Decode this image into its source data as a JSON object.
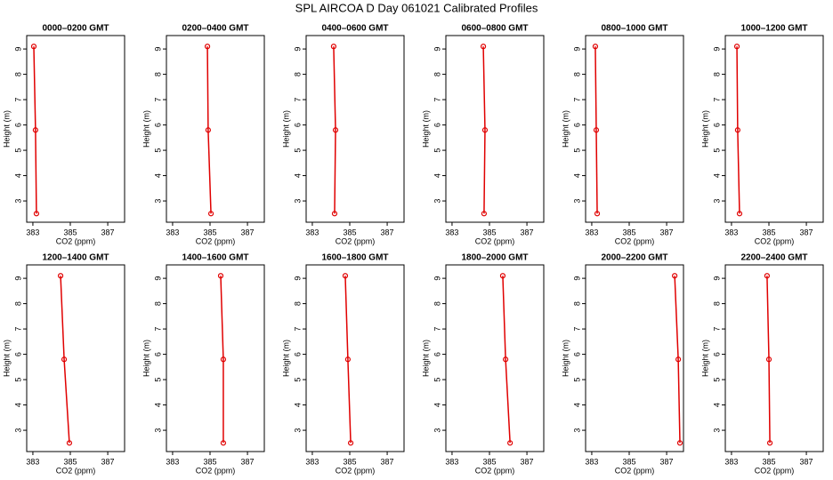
{
  "title": "SPL AIRCOA D  Day 061021  Calibrated Profiles",
  "chart_data": [
    {
      "type": "line",
      "title": "0000–0200 GMT",
      "xlabel": "CO2 (ppm)",
      "ylabel": "Height (m)",
      "color": "#e00000",
      "x": [
        383.05,
        383.14,
        383.19
      ],
      "values": [
        9.1,
        5.8,
        2.5
      ],
      "xlim": [
        382.67,
        387.9
      ],
      "ylim": [
        2.16,
        9.53
      ],
      "xticks": [
        383,
        385,
        387
      ],
      "yticks": [
        3,
        4,
        5,
        6,
        7,
        8,
        9
      ]
    },
    {
      "type": "line",
      "title": "0200–0400 GMT",
      "xlabel": "CO2 (ppm)",
      "ylabel": "Height (m)",
      "color": "#e00000",
      "x": [
        384.86,
        384.9,
        385.05
      ],
      "values": [
        9.1,
        5.8,
        2.5
      ],
      "xlim": [
        382.67,
        387.9
      ],
      "ylim": [
        2.16,
        9.53
      ],
      "xticks": [
        383,
        385,
        387
      ],
      "yticks": [
        3,
        4,
        5,
        6,
        7,
        8,
        9
      ]
    },
    {
      "type": "line",
      "title": "0400–0600 GMT",
      "xlabel": "CO2 (ppm)",
      "ylabel": "Height (m)",
      "color": "#e00000",
      "x": [
        384.14,
        384.24,
        384.19
      ],
      "values": [
        9.1,
        5.8,
        2.5
      ],
      "xlim": [
        382.67,
        387.9
      ],
      "ylim": [
        2.16,
        9.53
      ],
      "xticks": [
        383,
        385,
        387
      ],
      "yticks": [
        3,
        4,
        5,
        6,
        7,
        8,
        9
      ]
    },
    {
      "type": "line",
      "title": "0600–0800 GMT",
      "xlabel": "CO2 (ppm)",
      "ylabel": "Height (m)",
      "color": "#e00000",
      "x": [
        384.67,
        384.76,
        384.71
      ],
      "values": [
        9.1,
        5.8,
        2.5
      ],
      "xlim": [
        382.67,
        387.9
      ],
      "ylim": [
        2.16,
        9.53
      ],
      "xticks": [
        383,
        385,
        387
      ],
      "yticks": [
        3,
        4,
        5,
        6,
        7,
        8,
        9
      ]
    },
    {
      "type": "line",
      "title": "0800–1000 GMT",
      "xlabel": "CO2 (ppm)",
      "ylabel": "Height (m)",
      "color": "#e00000",
      "x": [
        383.19,
        383.24,
        383.29
      ],
      "values": [
        9.1,
        5.8,
        2.5
      ],
      "xlim": [
        382.67,
        387.9
      ],
      "ylim": [
        2.16,
        9.53
      ],
      "xticks": [
        383,
        385,
        387
      ],
      "yticks": [
        3,
        4,
        5,
        6,
        7,
        8,
        9
      ]
    },
    {
      "type": "line",
      "title": "1000–1200 GMT",
      "xlabel": "CO2 (ppm)",
      "ylabel": "Height (m)",
      "color": "#e00000",
      "x": [
        383.29,
        383.33,
        383.43
      ],
      "values": [
        9.1,
        5.8,
        2.5
      ],
      "xlim": [
        382.67,
        387.9
      ],
      "ylim": [
        2.16,
        9.53
      ],
      "xticks": [
        383,
        385,
        387
      ],
      "yticks": [
        3,
        4,
        5,
        6,
        7,
        8,
        9
      ]
    },
    {
      "type": "line",
      "title": "1200–1400 GMT",
      "xlabel": "CO2 (ppm)",
      "ylabel": "Height (m)",
      "color": "#e00000",
      "x": [
        384.48,
        384.67,
        384.95
      ],
      "values": [
        9.1,
        5.8,
        2.5
      ],
      "xlim": [
        382.67,
        387.9
      ],
      "ylim": [
        2.16,
        9.53
      ],
      "xticks": [
        383,
        385,
        387
      ],
      "yticks": [
        3,
        4,
        5,
        6,
        7,
        8,
        9
      ]
    },
    {
      "type": "line",
      "title": "1400–1600 GMT",
      "xlabel": "CO2 (ppm)",
      "ylabel": "Height (m)",
      "color": "#e00000",
      "x": [
        385.57,
        385.71,
        385.71
      ],
      "values": [
        9.1,
        5.8,
        2.5
      ],
      "xlim": [
        382.67,
        387.9
      ],
      "ylim": [
        2.16,
        9.53
      ],
      "xticks": [
        383,
        385,
        387
      ],
      "yticks": [
        3,
        4,
        5,
        6,
        7,
        8,
        9
      ]
    },
    {
      "type": "line",
      "title": "1600–1800 GMT",
      "xlabel": "CO2 (ppm)",
      "ylabel": "Height (m)",
      "color": "#e00000",
      "x": [
        384.76,
        384.9,
        385.05
      ],
      "values": [
        9.1,
        5.8,
        2.5
      ],
      "xlim": [
        382.67,
        387.9
      ],
      "ylim": [
        2.16,
        9.53
      ],
      "xticks": [
        383,
        385,
        387
      ],
      "yticks": [
        3,
        4,
        5,
        6,
        7,
        8,
        9
      ]
    },
    {
      "type": "line",
      "title": "1800–2000 GMT",
      "xlabel": "CO2 (ppm)",
      "ylabel": "Height (m)",
      "color": "#e00000",
      "x": [
        385.71,
        385.86,
        386.1
      ],
      "values": [
        9.1,
        5.8,
        2.5
      ],
      "xlim": [
        382.67,
        387.9
      ],
      "ylim": [
        2.16,
        9.53
      ],
      "xticks": [
        383,
        385,
        387
      ],
      "yticks": [
        3,
        4,
        5,
        6,
        7,
        8,
        9
      ]
    },
    {
      "type": "line",
      "title": "2000–2200 GMT",
      "xlabel": "CO2 (ppm)",
      "ylabel": "Height (m)",
      "color": "#e00000",
      "x": [
        387.43,
        387.62,
        387.71
      ],
      "values": [
        9.1,
        5.8,
        2.5
      ],
      "xlim": [
        382.67,
        387.9
      ],
      "ylim": [
        2.16,
        9.53
      ],
      "xticks": [
        383,
        385,
        387
      ],
      "yticks": [
        3,
        4,
        5,
        6,
        7,
        8,
        9
      ]
    },
    {
      "type": "line",
      "title": "2200–2400 GMT",
      "xlabel": "CO2 (ppm)",
      "ylabel": "Height (m)",
      "color": "#e00000",
      "x": [
        384.9,
        385.0,
        385.05
      ],
      "values": [
        9.1,
        5.8,
        2.5
      ],
      "xlim": [
        382.67,
        387.9
      ],
      "ylim": [
        2.16,
        9.53
      ],
      "xticks": [
        383,
        385,
        387
      ],
      "yticks": [
        3,
        4,
        5,
        6,
        7,
        8,
        9
      ]
    }
  ]
}
